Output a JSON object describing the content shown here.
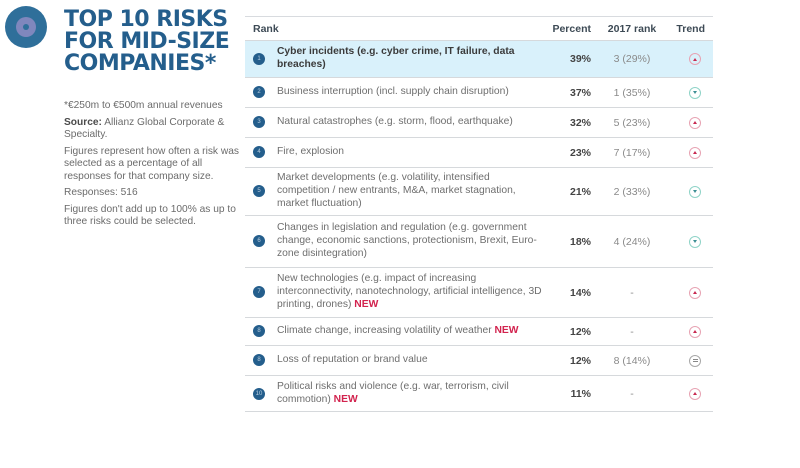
{
  "title": "TOP 10 RISKS FOR MID-SIZE COMPANIES*",
  "sidebar": {
    "footnote": "*€250m to €500m annual revenues",
    "source_label": "Source:",
    "source_text": "Allianz Global Corporate & Specialty.",
    "figures_note": "Figures represent how often a risk was selected as a percentage of all responses for that company size.",
    "responses": "Responses: 516",
    "sum_note": "Figures don't add up to 100% as up to three risks could be selected."
  },
  "table": {
    "headers": {
      "rank": "Rank",
      "percent": "Percent",
      "prev_rank": "2017 rank",
      "trend": "Trend"
    },
    "new_label": "NEW",
    "rows": [
      {
        "rank": "1",
        "risk": "Cyber incidents (e.g. cyber crime, IT failure, data breaches)",
        "is_new": false,
        "percent": "39%",
        "prev_rank": "3 (29%)",
        "trend": "up",
        "highlight": true
      },
      {
        "rank": "2",
        "risk": "Business interruption (incl. supply chain disruption)",
        "is_new": false,
        "percent": "37%",
        "prev_rank": "1 (35%)",
        "trend": "down"
      },
      {
        "rank": "3",
        "risk": "Natural catastrophes (e.g. storm, flood, earthquake)",
        "is_new": false,
        "percent": "32%",
        "prev_rank": "5 (23%)",
        "trend": "up"
      },
      {
        "rank": "4",
        "risk": "Fire, explosion",
        "is_new": false,
        "percent": "23%",
        "prev_rank": "7 (17%)",
        "trend": "up"
      },
      {
        "rank": "5",
        "risk": "Market developments (e.g. volatility, intensified competition / new entrants, M&A, market stagnation, market fluctuation)",
        "is_new": false,
        "percent": "21%",
        "prev_rank": "2 (33%)",
        "trend": "down"
      },
      {
        "rank": "6",
        "risk": "Changes in legislation and regulation (e.g. government change, economic sanctions, protectionism, Brexit, Euro-zone disintegration)",
        "is_new": false,
        "percent": "18%",
        "prev_rank": "4 (24%)",
        "trend": "down"
      },
      {
        "rank": "7",
        "risk": " New technologies (e.g. impact of increasing interconnectivity, nanotechnology, artificial intelligence, 3D printing, drones) ",
        "is_new": true,
        "percent": "14%",
        "prev_rank": "-",
        "trend": "up"
      },
      {
        "rank": "8",
        "risk": "Climate change, increasing volatility of weather ",
        "is_new": true,
        "percent": "12%",
        "prev_rank": "-",
        "trend": "up"
      },
      {
        "rank": "8",
        "risk": "Loss of reputation or brand value",
        "is_new": false,
        "percent": "12%",
        "prev_rank": "8 (14%)",
        "trend": "same"
      },
      {
        "rank": "10",
        "risk": "Political risks and violence (e.g. war, terrorism, civil commotion) ",
        "is_new": true,
        "percent": "11%",
        "prev_rank": "-",
        "trend": "up"
      }
    ]
  },
  "colors": {
    "brand_blue": "#245e8c",
    "highlight_row": "#d9f1fb",
    "new_red": "#d2234e",
    "trend_up": "#c8284f",
    "trend_down": "#3d8f94"
  }
}
